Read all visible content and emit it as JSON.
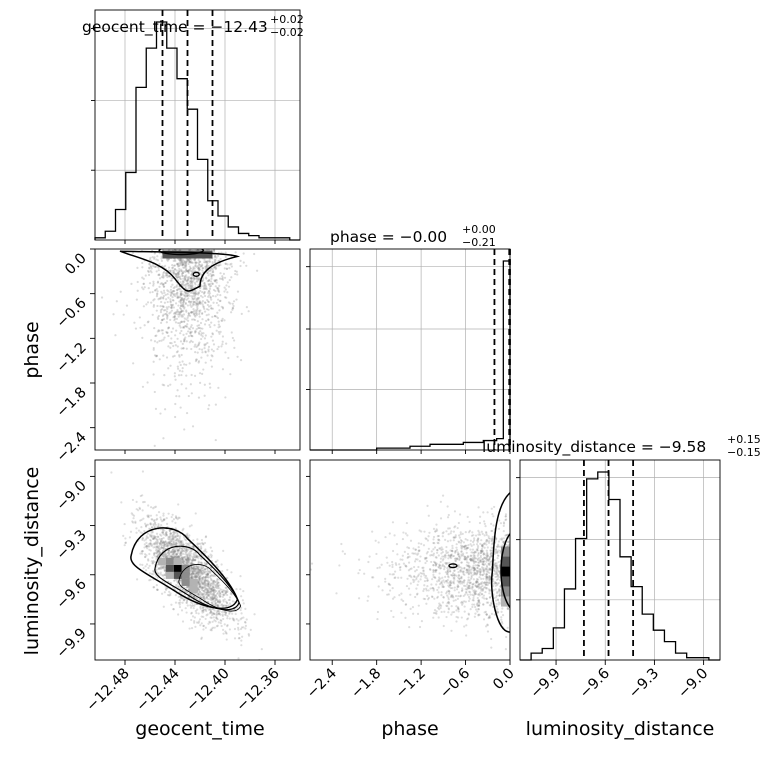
{
  "figure": {
    "titles": {
      "geocent_time": "geocent_time = −12.43",
      "geocent_time_sup": "+0.02",
      "geocent_time_sub": "−0.02",
      "phase": "phase = −0.00",
      "phase_sup": "+0.00",
      "phase_sub": "−0.21",
      "luminosity_distance": "luminosity_distance = −9.58",
      "luminosity_distance_sup": "+0.15",
      "luminosity_distance_sub": "−0.15"
    },
    "axis_labels": {
      "x_geocent_time": "geocent_time",
      "x_phase": "phase",
      "x_luminosity_distance": "luminosity_distance",
      "y_phase": "phase",
      "y_luminosity_distance": "luminosity_distance"
    },
    "colors": {
      "line": "#000000",
      "grid": "#b0b0b0",
      "scatter": "#7f7f7f"
    }
  },
  "chart_data": [
    {
      "type": "histogram",
      "parameter": "geocent_time",
      "xlim": [
        -12.504,
        -12.34
      ],
      "ticks": [
        -12.48,
        -12.44,
        -12.4,
        -12.36
      ],
      "tick_labels": [
        "−12.48",
        "−12.44",
        "−12.40",
        "−12.36"
      ],
      "bin_counts": [
        1,
        4,
        14,
        31,
        70,
        88,
        100,
        88,
        74,
        60,
        37,
        18,
        11,
        6,
        3,
        2,
        1,
        1,
        1,
        0
      ],
      "quantiles": [
        -12.45,
        -12.43,
        -12.41
      ],
      "grid": true
    },
    {
      "type": "histogram",
      "parameter": "phase",
      "xlim": [
        -2.7,
        0.0
      ],
      "ticks": [
        -2.4,
        -1.8,
        -1.2,
        -0.6,
        0.0
      ],
      "tick_labels": [
        "−2.4",
        "−1.8",
        "−1.2",
        "−0.6",
        "0.0"
      ],
      "bin_counts": [
        0,
        0,
        0,
        0,
        0,
        0,
        0,
        0,
        0,
        0,
        1,
        1,
        1,
        1,
        1,
        2,
        2,
        2,
        3,
        3,
        3,
        3,
        3,
        4,
        4,
        4,
        5,
        5,
        6,
        100
      ],
      "quantiles": [
        -0.21,
        -0.01,
        0.0
      ],
      "grid": true
    },
    {
      "type": "histogram",
      "parameter": "luminosity_distance",
      "xlim": [
        -10.12,
        -8.9
      ],
      "ticks": [
        -9.9,
        -9.6,
        -9.3,
        -9.0
      ],
      "tick_labels": [
        "−9.9",
        "−9.6",
        "−9.3",
        "−9.0"
      ],
      "bin_counts": [
        0,
        3,
        5,
        14,
        31,
        53,
        79,
        82,
        70,
        45,
        32,
        20,
        13,
        8,
        3,
        1,
        1,
        0
      ],
      "quantiles": [
        -9.73,
        -9.58,
        -9.43
      ],
      "grid": true
    },
    {
      "type": "scatter",
      "x": "geocent_time",
      "y": "phase",
      "ylim": [
        -2.7,
        0.0
      ],
      "yticks": [
        -2.4,
        -1.8,
        -1.2,
        -0.6,
        0.0
      ],
      "ytick_labels": [
        "−2.4",
        "−1.8",
        "−1.2",
        "−0.6",
        "0.0"
      ],
      "contours": true,
      "grid": false
    },
    {
      "type": "scatter",
      "x": "geocent_time",
      "y": "luminosity_distance",
      "ylim": [
        -10.12,
        -8.9
      ],
      "yticks": [
        -9.9,
        -9.6,
        -9.3,
        -9.0
      ],
      "ytick_labels": [
        "−9.9",
        "−9.6",
        "−9.3",
        "−9.0"
      ],
      "contours": true,
      "grid": false
    },
    {
      "type": "scatter",
      "x": "phase",
      "y": "luminosity_distance",
      "contours": true,
      "grid": false
    }
  ]
}
